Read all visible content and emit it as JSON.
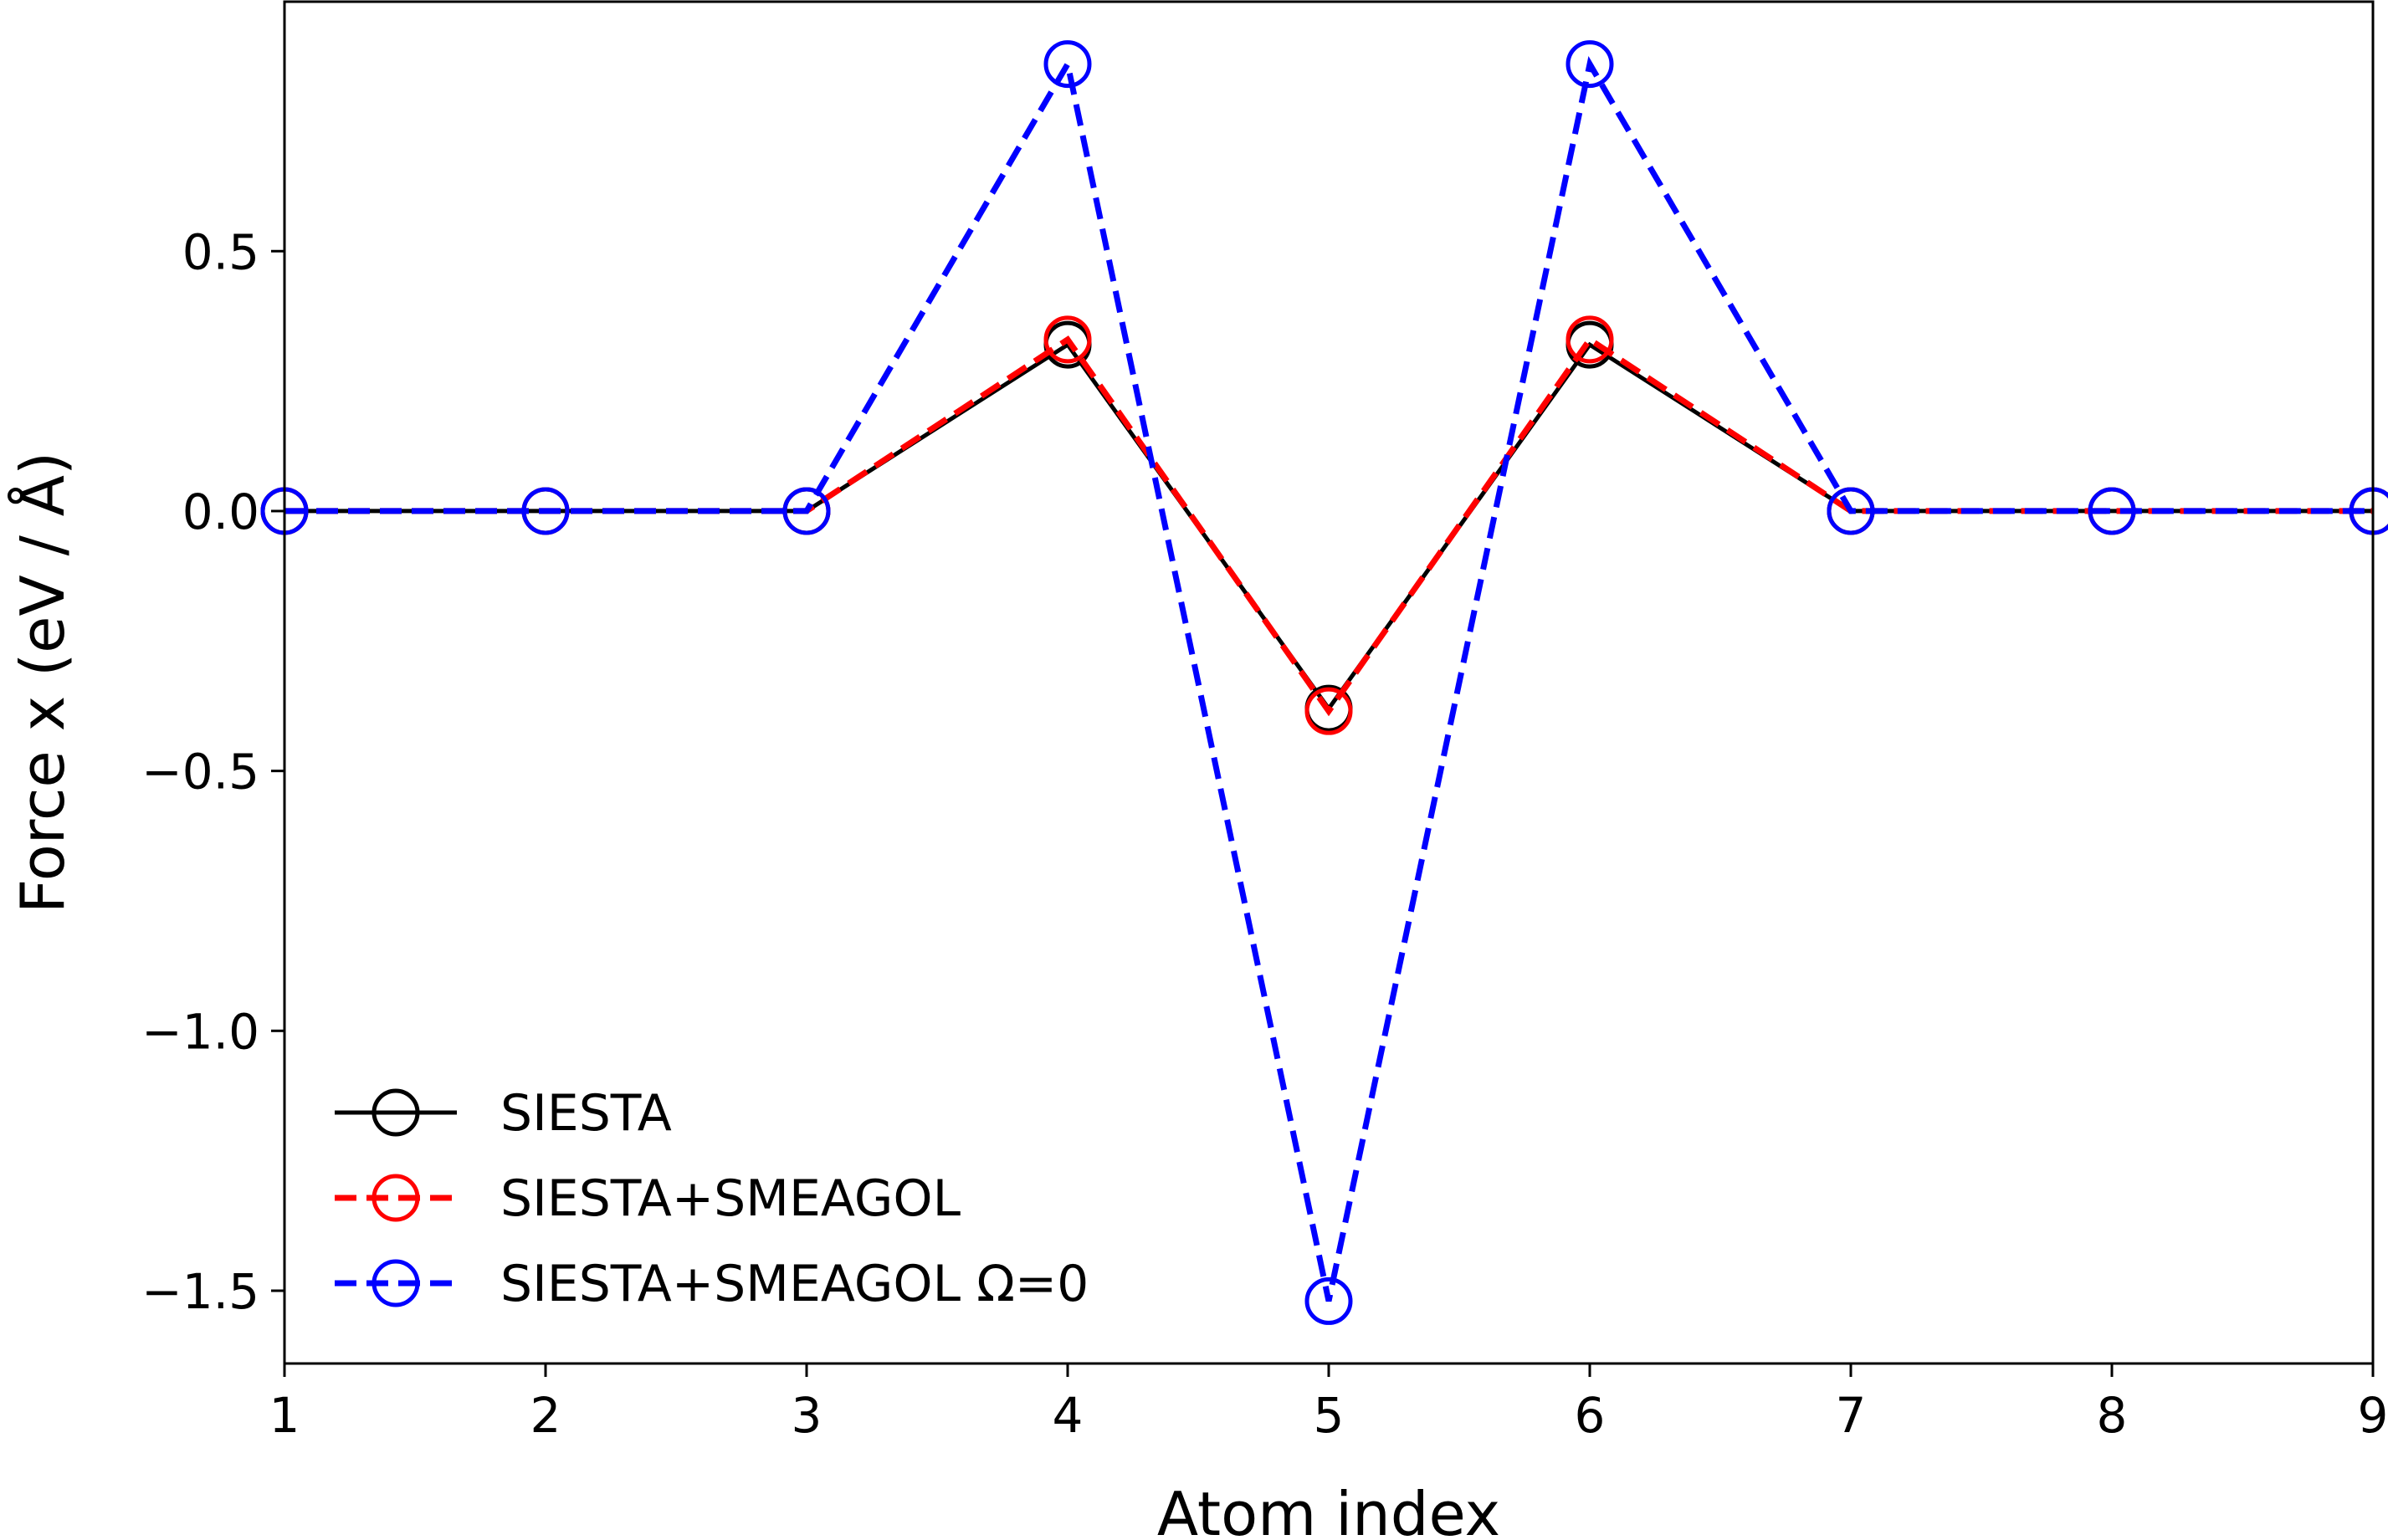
{
  "chart_data": {
    "type": "line",
    "title": "",
    "xlabel": "Atom index",
    "ylabel": "Force x (eV / Å)",
    "xlim": [
      1,
      9
    ],
    "ylim": [
      -1.64,
      0.98
    ],
    "xticks": [
      1,
      2,
      3,
      4,
      5,
      6,
      7,
      8,
      9
    ],
    "xtick_labels": [
      "1",
      "2",
      "3",
      "4",
      "5",
      "6",
      "7",
      "8",
      "9"
    ],
    "yticks": [
      0.5,
      0.0,
      -0.5,
      -1.0,
      -1.5
    ],
    "ytick_labels": [
      "0.5",
      "0.0",
      "−0.5",
      "−1.0",
      "−1.5"
    ],
    "grid": false,
    "legend_position": "lower-left",
    "x": [
      1,
      2,
      3,
      4,
      5,
      6,
      7,
      8,
      9
    ],
    "series": [
      {
        "name": "SIESTA",
        "values": [
          0,
          0,
          0,
          0.32,
          -0.38,
          0.32,
          0,
          0,
          0
        ],
        "color": "#000000",
        "linestyle": "solid",
        "marker": "open-circle"
      },
      {
        "name": "SIESTA+SMEAGOL",
        "values": [
          0,
          0,
          0,
          0.33,
          -0.385,
          0.33,
          0,
          0,
          0
        ],
        "color": "#ff0000",
        "linestyle": "dashed",
        "marker": "open-circle"
      },
      {
        "name": "SIESTA+SMEAGOL Ω=0",
        "values": [
          0,
          0,
          0,
          0.86,
          -1.52,
          0.86,
          0,
          0,
          0
        ],
        "color": "#0000ff",
        "linestyle": "dashed",
        "marker": "open-circle"
      }
    ]
  }
}
